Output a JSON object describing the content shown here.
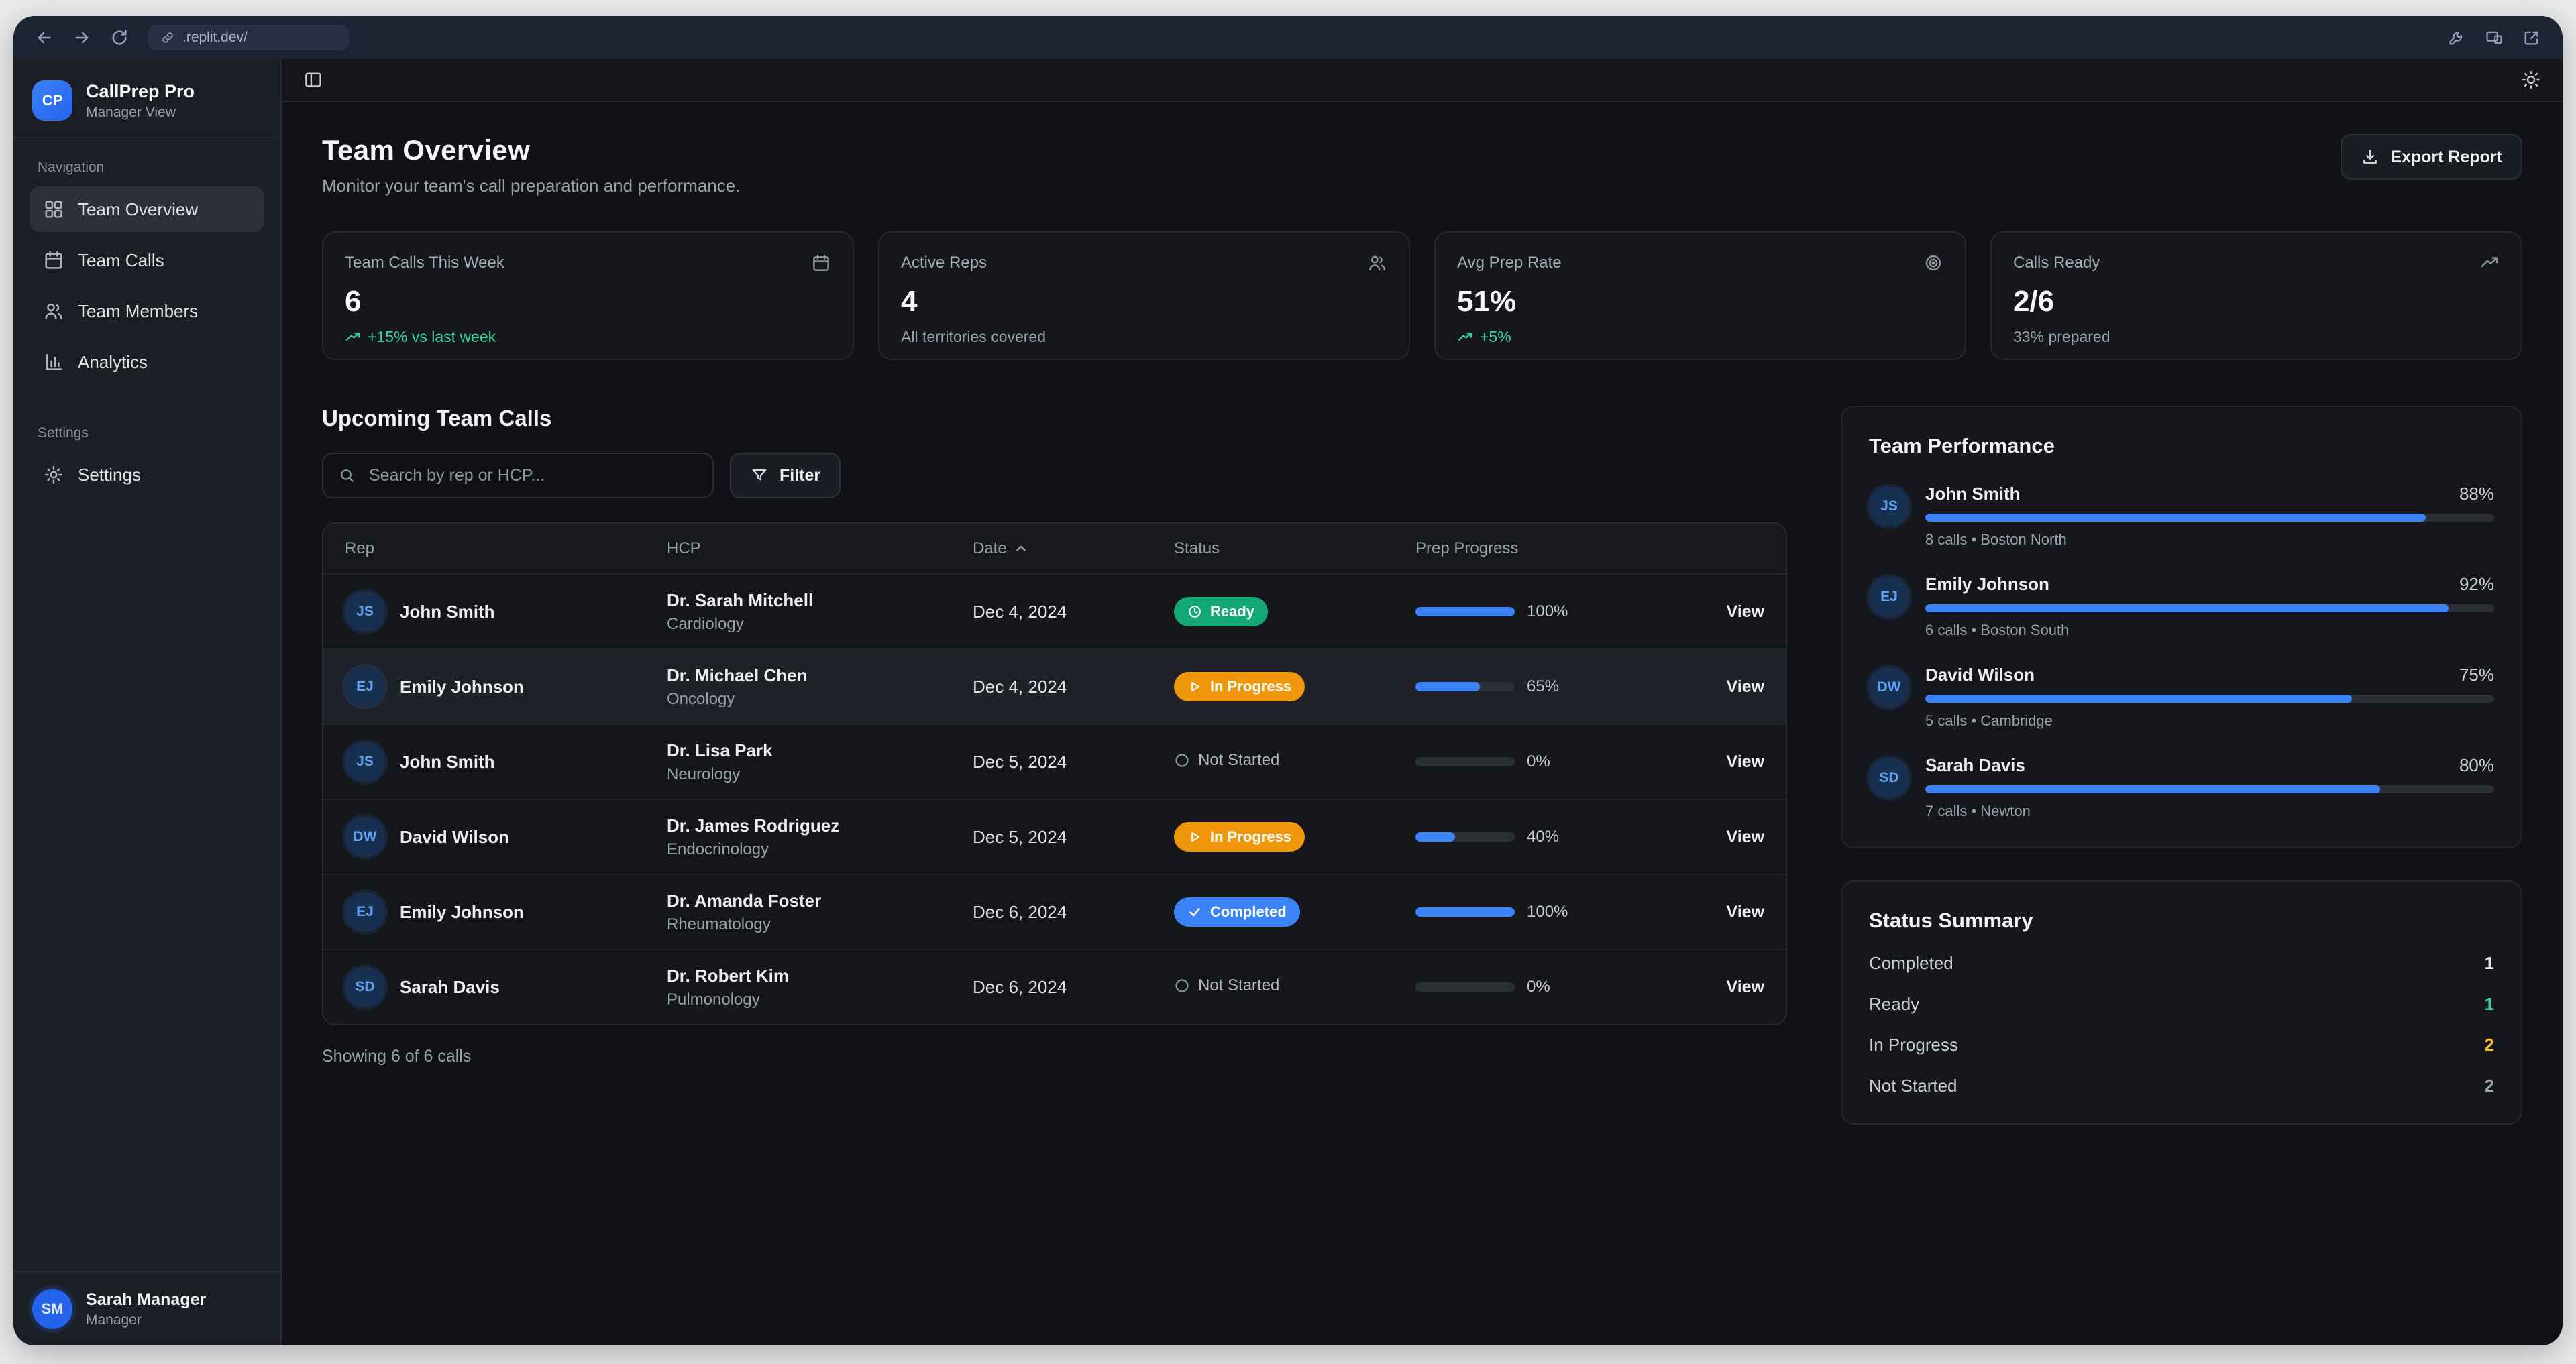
{
  "browser": {
    "url": ".replit.dev/"
  },
  "topbar": {
    "theme_icon": "sun-icon",
    "panel_toggle_icon": "panel-left-icon"
  },
  "sidebar": {
    "logo_text": "CP",
    "app_name": "CallPrep Pro",
    "app_subtitle": "Manager View",
    "nav_section_label": "Navigation",
    "nav_items": [
      {
        "label": "Team Overview",
        "icon": "grid-icon",
        "active": true
      },
      {
        "label": "Team Calls",
        "icon": "calendar-icon",
        "active": false
      },
      {
        "label": "Team Members",
        "icon": "users-icon",
        "active": false
      },
      {
        "label": "Analytics",
        "icon": "bar-chart-icon",
        "active": false
      }
    ],
    "settings_section_label": "Settings",
    "settings_items": [
      {
        "label": "Settings",
        "icon": "gear-icon"
      }
    ],
    "user": {
      "initials": "SM",
      "name": "Sarah Manager",
      "role": "Manager"
    }
  },
  "header": {
    "title": "Team Overview",
    "subtitle": "Monitor your team's call preparation and performance.",
    "export_button": "Export Report"
  },
  "stats": [
    {
      "label": "Team Calls This Week",
      "value": "6",
      "sub": "+15% vs last week",
      "icon": "calendar-icon"
    },
    {
      "label": "Active Reps",
      "value": "4",
      "sub": "All territories covered",
      "icon": "users-icon"
    },
    {
      "label": "Avg Prep Rate",
      "value": "51%",
      "sub": "+5%",
      "icon": "target-icon"
    },
    {
      "label": "Calls Ready",
      "value": "2/6",
      "sub": "33% prepared",
      "icon": "trending-up-icon"
    }
  ],
  "calls_section": {
    "title": "Upcoming Team Calls",
    "search_placeholder": "Search by rep or HCP...",
    "filter_button": "Filter",
    "columns": {
      "rep": "Rep",
      "hcp": "HCP",
      "date": "Date",
      "status": "Status",
      "progress": "Prep Progress"
    },
    "rows": [
      {
        "initials": "JS",
        "rep": "John Smith",
        "hcp": "Dr. Sarah Mitchell",
        "specialty": "Cardiology",
        "date": "Dec 4, 2024",
        "status": "Ready",
        "progress": 100,
        "progress_label": "100%",
        "action": "View"
      },
      {
        "initials": "EJ",
        "rep": "Emily Johnson",
        "hcp": "Dr. Michael Chen",
        "specialty": "Oncology",
        "date": "Dec 4, 2024",
        "status": "In Progress",
        "progress": 65,
        "progress_label": "65%",
        "action": "View"
      },
      {
        "initials": "JS",
        "rep": "John Smith",
        "hcp": "Dr. Lisa Park",
        "specialty": "Neurology",
        "date": "Dec 5, 2024",
        "status": "Not Started",
        "progress": 0,
        "progress_label": "0%",
        "action": "View"
      },
      {
        "initials": "DW",
        "rep": "David Wilson",
        "hcp": "Dr. James Rodriguez",
        "specialty": "Endocrinology",
        "date": "Dec 5, 2024",
        "status": "In Progress",
        "progress": 40,
        "progress_label": "40%",
        "action": "View"
      },
      {
        "initials": "EJ",
        "rep": "Emily Johnson",
        "hcp": "Dr. Amanda Foster",
        "specialty": "Rheumatology",
        "date": "Dec 6, 2024",
        "status": "Completed",
        "progress": 100,
        "progress_label": "100%",
        "action": "View"
      },
      {
        "initials": "SD",
        "rep": "Sarah Davis",
        "hcp": "Dr. Robert Kim",
        "specialty": "Pulmonology",
        "date": "Dec 6, 2024",
        "status": "Not Started",
        "progress": 0,
        "progress_label": "0%",
        "action": "View"
      }
    ],
    "footer": "Showing 6 of 6 calls"
  },
  "team_performance": {
    "title": "Team Performance",
    "members": [
      {
        "initials": "JS",
        "name": "John Smith",
        "pct": 88,
        "pct_label": "88%",
        "sub": "8 calls • Boston North"
      },
      {
        "initials": "EJ",
        "name": "Emily Johnson",
        "pct": 92,
        "pct_label": "92%",
        "sub": "6 calls • Boston South"
      },
      {
        "initials": "DW",
        "name": "David Wilson",
        "pct": 75,
        "pct_label": "75%",
        "sub": "5 calls • Cambridge"
      },
      {
        "initials": "SD",
        "name": "Sarah Davis",
        "pct": 80,
        "pct_label": "80%",
        "sub": "7 calls • Newton"
      }
    ]
  },
  "status_summary": {
    "title": "Status Summary",
    "rows": [
      {
        "label": "Completed",
        "value": "1"
      },
      {
        "label": "Ready",
        "value": "1"
      },
      {
        "label": "In Progress",
        "value": "2"
      },
      {
        "label": "Not Started",
        "value": "2"
      }
    ]
  },
  "colors": {
    "accent_blue": "#3b82f6",
    "ready_green": "#12a873",
    "in_progress_amber": "#f0960b",
    "completed_blue": "#3b82f6",
    "positive_text": "#34d399",
    "amber_text": "#fbbf24"
  }
}
